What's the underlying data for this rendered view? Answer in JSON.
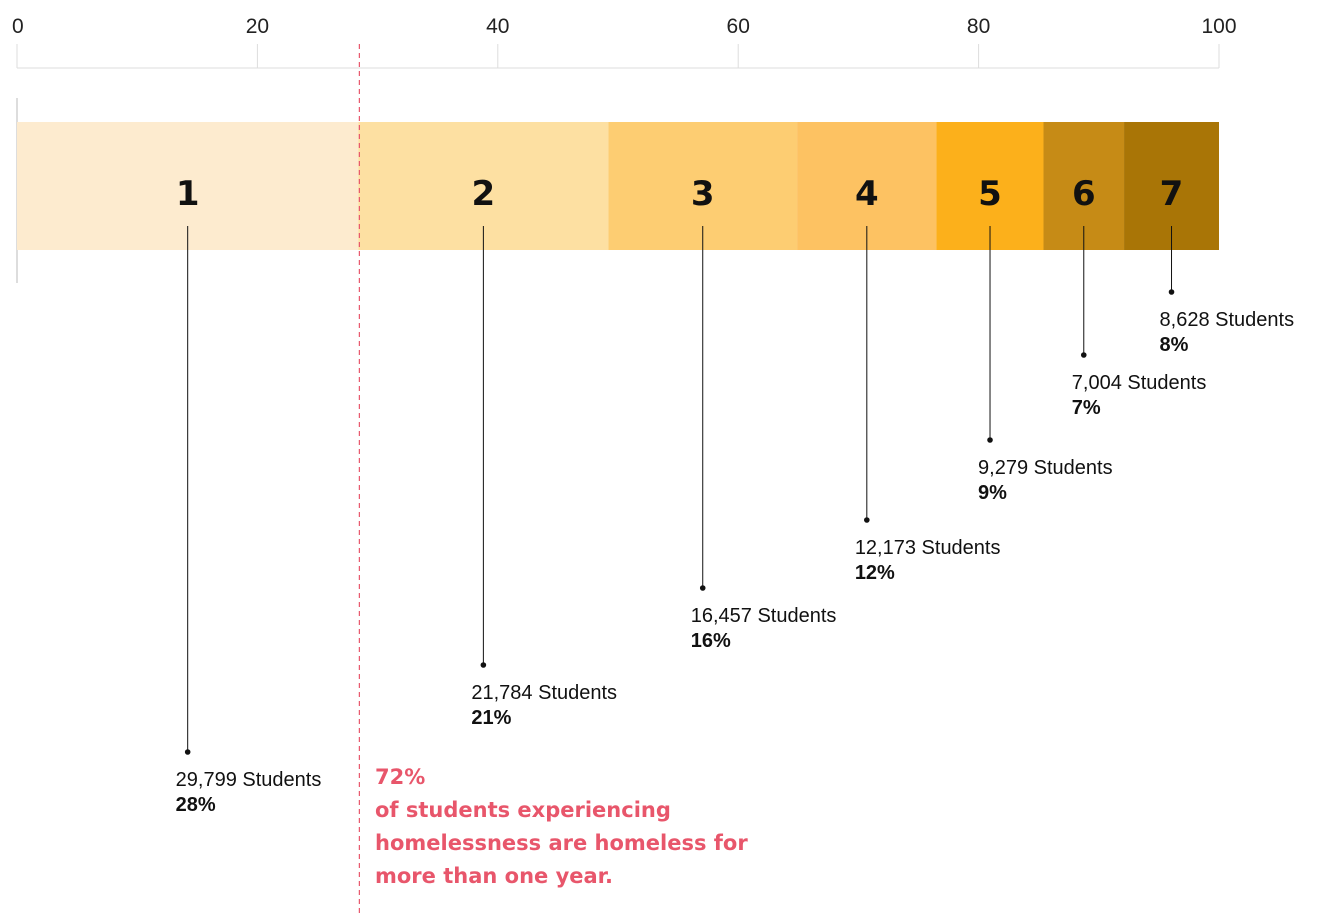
{
  "chart_data": {
    "type": "bar",
    "orientation": "horizontal-stacked",
    "xlim": [
      0,
      100
    ],
    "ticks": [
      "0",
      "20",
      "40",
      "60",
      "80",
      "100"
    ],
    "categories": [
      "1",
      "2",
      "3",
      "4",
      "5",
      "6",
      "7"
    ],
    "values": [
      28.4,
      20.8,
      15.7,
      11.6,
      8.9,
      6.7,
      8.2
    ],
    "students": [
      "29,799 Students",
      "21,784 Students",
      "16,457 Students",
      "12,173 Students",
      "9,279 Students",
      "7,004 Students",
      "8,628 Students"
    ],
    "percent_labels": [
      "28%",
      "21%",
      "16%",
      "12%",
      "9%",
      "7%",
      "8%"
    ],
    "colors": [
      "#fdebcf",
      "#fde0a2",
      "#fdcd72",
      "#fdc262",
      "#fcb01b",
      "#c68b16",
      "#a97506"
    ],
    "reference_line": {
      "x": 28.4,
      "color": "#e8566b"
    },
    "annotation": {
      "value": "72%",
      "lines": [
        "of students experiencing",
        "homelessness are homeless for",
        "more than one year."
      ]
    },
    "title": "",
    "xlabel": "",
    "ylabel": ""
  }
}
